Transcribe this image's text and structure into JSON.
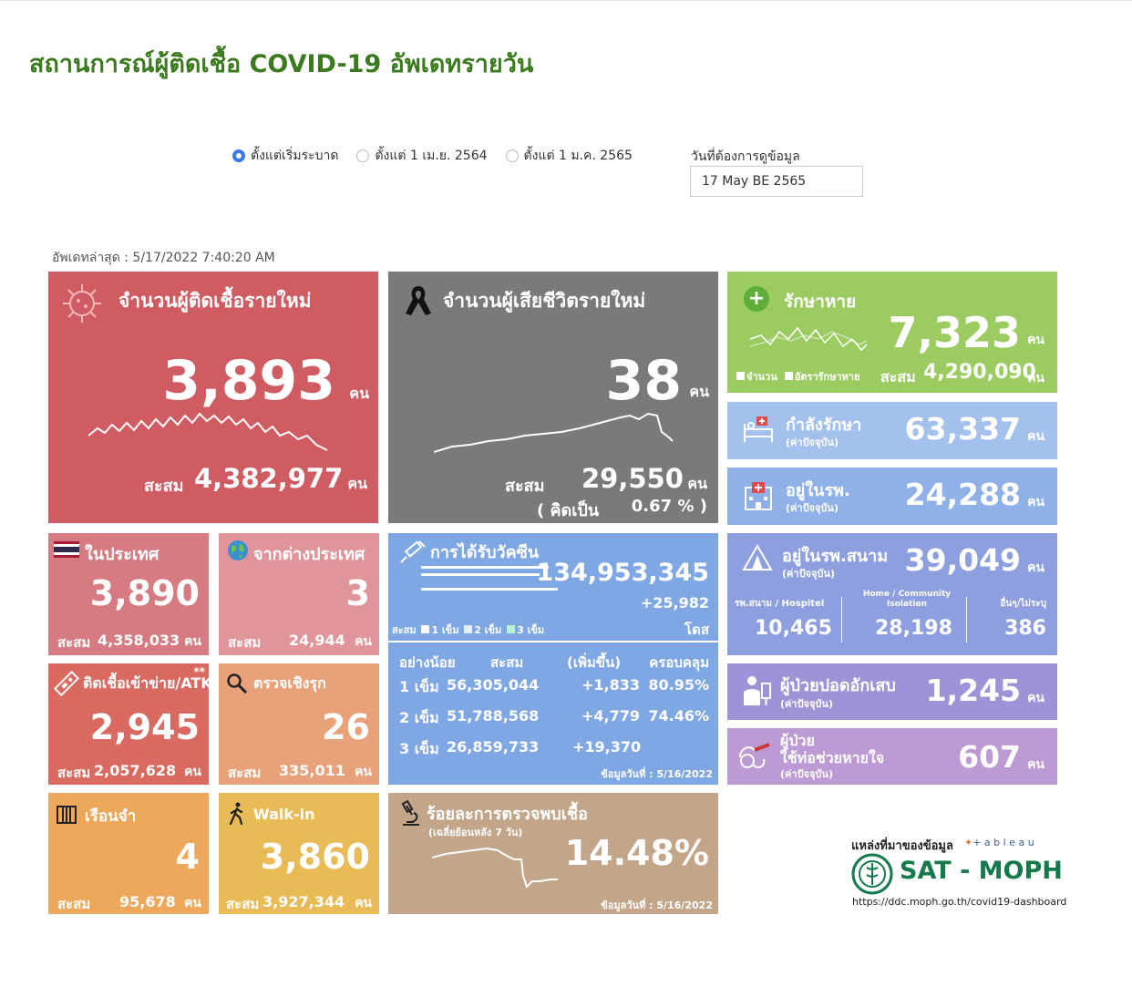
{
  "page_title": "สถานการณ์ผู้ติดเชื้อ COVID-19 อัพเดทรายวัน",
  "filters": {
    "options": [
      {
        "label": "ตั้งแต่เริ่มระบาด",
        "selected": true
      },
      {
        "label": "ตั้งแต่ 1 เม.ย. 2564",
        "selected": false
      },
      {
        "label": "ตั้งแต่ 1 ม.ค. 2565",
        "selected": false
      }
    ],
    "date_label": "วันที่ต้องการดูข้อมูล",
    "date_value": "17 May BE 2565"
  },
  "updated": "อัพเดทล่าสุด : 5/17/2022 7:40:20 AM",
  "unit": "คน",
  "cum_label": "สะสม",
  "new_cases": {
    "title": "จำนวนผู้ติดเชื้อรายใหม่",
    "value": "3,893",
    "cum": "4,382,977",
    "color": "#cf5c63"
  },
  "deaths": {
    "title": "จำนวนผู้เสียชีวิตรายใหม่",
    "value": "38",
    "cum": "29,550",
    "rate_label": "( คิดเป็น",
    "rate": "0.67 % )",
    "color": "#7a7a7a"
  },
  "recovered": {
    "title": "รักษาหาย",
    "value": "7,323",
    "legend1": "จำนวน",
    "legend2": "อัตรารักษาหาย",
    "cum": "4,290,090",
    "color": "#9ccb62"
  },
  "treating": {
    "title": "กำลังรักษา",
    "sub": "(ค่าปัจจุบัน)",
    "value": "63,337",
    "color": "#a3c1ec"
  },
  "hospital": {
    "title": "อยู่ในรพ.",
    "sub": "(ค่าปัจจุบัน)",
    "value": "24,288",
    "color": "#8fb1e8"
  },
  "domestic": {
    "title": "ในประเทศ",
    "value": "3,890",
    "cum": "4,358,033",
    "color": "#d67b82"
  },
  "abroad": {
    "title": "จากต่างประเทศ",
    "value": "3",
    "cum": "24,944",
    "color": "#e0959a"
  },
  "vaccine": {
    "title": "การได้รับวัคซีน",
    "total": "134,953,345",
    "increase": "+25,982",
    "unit": "โดส",
    "legend": [
      "1 เข็ม",
      "2 เข็ม",
      "3 เข็ม"
    ],
    "headers": [
      "อย่างน้อย",
      "สะสม",
      "(เพิ่มขึ้น)",
      "ครอบคลุม"
    ],
    "rows": [
      {
        "dose": "1 เข็ม",
        "cum": "56,305,044",
        "inc": "+1,833",
        "cov": "80.95%"
      },
      {
        "dose": "2 เข็ม",
        "cum": "51,788,568",
        "inc": "+4,779",
        "cov": "74.46%"
      },
      {
        "dose": "3 เข็ม",
        "cum": "26,859,733",
        "inc": "+19,370",
        "cov": ""
      }
    ],
    "date": "ข้อมูลวันที่ : 5/16/2022",
    "color": "#7fa7e3"
  },
  "field_hospital": {
    "title": "อยู่ในรพ.สนาม",
    "sub": "(ค่าปัจจุบัน)",
    "value": "39,049",
    "cols": [
      {
        "label": "รพ.สนาม / Hospitel",
        "value": "10,465"
      },
      {
        "label": "Home / Community Isolation",
        "value": "28,198"
      },
      {
        "label": "อื่นๆ/ไม่ระบุ",
        "value": "386"
      }
    ],
    "color": "#8e9fe0"
  },
  "atk": {
    "title": "ติดเชื้อเข้าข่าย/ATK",
    "mark": "**",
    "value": "2,945",
    "cum": "2,057,628",
    "color": "#d96a61"
  },
  "active_search": {
    "title": "ตรวจเชิงรุก",
    "value": "26",
    "cum": "335,011",
    "color": "#e9a17a"
  },
  "pneumonia": {
    "title": "ผู้ป่วยปอดอักเสบ",
    "sub": "(ค่าปัจจุบัน)",
    "value": "1,245",
    "color": "#9f93d8"
  },
  "ventilator": {
    "title1": "ผู้ป่วย",
    "title2": "ใช้ท่อช่วยหายใจ",
    "sub": "(ค่าปัจจุบัน)",
    "value": "607",
    "color": "#bd9ad3"
  },
  "prison": {
    "title": "เรือนจำ",
    "value": "4",
    "cum": "95,678",
    "color": "#eda85c"
  },
  "walkin": {
    "title": "Walk-in",
    "value": "3,860",
    "cum": "3,927,344",
    "color": "#e8bb57"
  },
  "positivity": {
    "title": "ร้อยละการตรวจพบเชื้อ",
    "sub": "(เฉลี่ยย้อนหลัง 7 วัน)",
    "value": "14.48%",
    "date": "ข้อมูลวันที่ : 5/16/2022",
    "color": "#c3a58a"
  },
  "source": {
    "label": "แหล่งที่มาของข้อมูล",
    "tableau": "+ a b l e a u",
    "brand": "SAT - MOPH",
    "url": "https://ddc.moph.go.th/covid19-dashboard"
  }
}
